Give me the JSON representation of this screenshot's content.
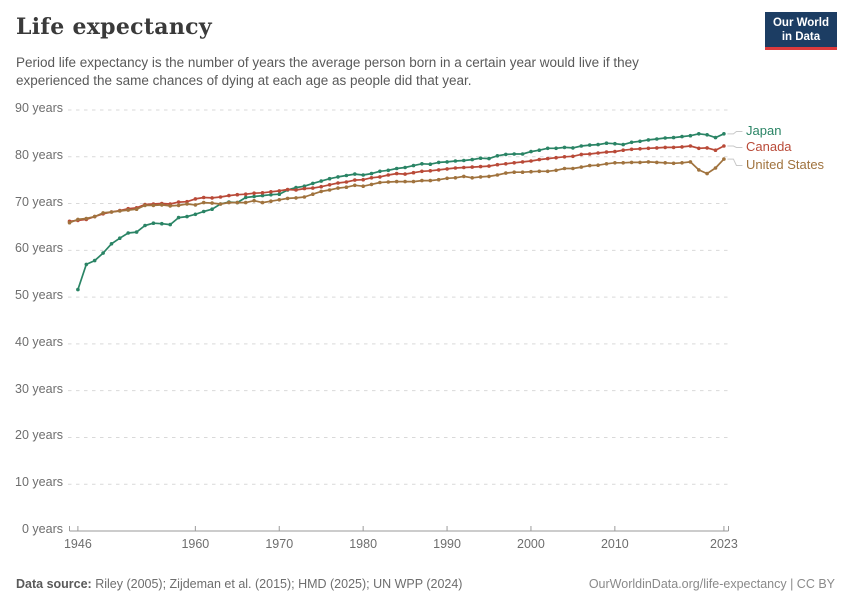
{
  "header": {
    "title": "Life expectancy",
    "subtitle_line1": "Period life expectancy is the number of years the average person born in a certain year would live if they",
    "subtitle_line2": "experienced the same chances of dying at each age as people did that year."
  },
  "logo": {
    "line1": "Our World",
    "line2": "in Data",
    "bg_color": "#1c3d63",
    "stripe_color": "#dc3a3c"
  },
  "footer": {
    "source_label": "Data source:",
    "source_text": " Riley (2005); Zijdeman et al. (2015); HMD (2025); UN WPP (2024)",
    "link_text": "OurWorldinData.org/life-expectancy | CC BY"
  },
  "chart_data": {
    "type": "line",
    "title": "Life expectancy",
    "xlabel": "",
    "ylabel": "years",
    "ylim": [
      0,
      90
    ],
    "x_range": [
      1945,
      2023
    ],
    "grid": "dashed horizontal",
    "legend_position": "right of line ends",
    "yticks": [
      0,
      10,
      20,
      30,
      40,
      50,
      60,
      70,
      80,
      90
    ],
    "ytick_suffix": " years",
    "xticks": [
      1946,
      1960,
      1970,
      1980,
      1990,
      2000,
      2010,
      2023
    ],
    "axis_color": "#9a9a9a",
    "grid_color": "#d9d9d9",
    "connector_color": "#c9c9c9",
    "series": [
      {
        "name": "Japan",
        "color": "#2A8465",
        "start_year": 1946,
        "values": [
          51.6,
          57.0,
          57.8,
          59.4,
          61.4,
          62.6,
          63.7,
          63.9,
          65.3,
          65.8,
          65.7,
          65.5,
          67.0,
          67.2,
          67.7,
          68.3,
          68.8,
          69.9,
          70.3,
          70.2,
          71.3,
          71.5,
          71.7,
          71.9,
          72.0,
          72.9,
          73.4,
          73.7,
          74.3,
          74.8,
          75.3,
          75.7,
          76.0,
          76.3,
          76.1,
          76.4,
          76.9,
          77.1,
          77.5,
          77.7,
          78.1,
          78.5,
          78.4,
          78.8,
          78.9,
          79.1,
          79.2,
          79.4,
          79.7,
          79.6,
          80.2,
          80.5,
          80.6,
          80.6,
          81.1,
          81.4,
          81.8,
          81.8,
          82.0,
          81.9,
          82.3,
          82.5,
          82.6,
          82.9,
          82.8,
          82.6,
          83.1,
          83.3,
          83.6,
          83.8,
          84.0,
          84.1,
          84.3,
          84.5,
          84.9,
          84.7,
          84.1,
          84.9
        ]
      },
      {
        "name": "Canada",
        "color": "#B94A38",
        "start_year": 1945,
        "values": [
          66.2,
          66.4,
          66.6,
          67.2,
          67.8,
          68.2,
          68.5,
          68.9,
          69.1,
          69.8,
          69.9,
          70.0,
          69.9,
          70.3,
          70.4,
          71.0,
          71.3,
          71.2,
          71.4,
          71.7,
          71.9,
          72.0,
          72.2,
          72.3,
          72.5,
          72.7,
          73.0,
          72.9,
          73.2,
          73.3,
          73.6,
          74.0,
          74.4,
          74.6,
          75.0,
          75.1,
          75.5,
          75.7,
          76.1,
          76.4,
          76.3,
          76.6,
          76.9,
          77.0,
          77.2,
          77.4,
          77.6,
          77.7,
          77.8,
          77.9,
          78.0,
          78.3,
          78.5,
          78.7,
          78.9,
          79.1,
          79.4,
          79.6,
          79.8,
          80.0,
          80.1,
          80.5,
          80.6,
          80.8,
          81.0,
          81.1,
          81.4,
          81.6,
          81.7,
          81.8,
          81.9,
          82.0,
          82.0,
          82.1,
          82.3,
          81.8,
          81.9,
          81.4,
          82.3
        ]
      },
      {
        "name": "United States",
        "color": "#A0733E",
        "start_year": 1945,
        "values": [
          65.9,
          66.6,
          66.8,
          67.2,
          68.0,
          68.2,
          68.4,
          68.6,
          68.8,
          69.6,
          69.6,
          69.7,
          69.5,
          69.6,
          69.9,
          69.7,
          70.2,
          70.1,
          69.9,
          70.2,
          70.2,
          70.2,
          70.6,
          70.2,
          70.5,
          70.8,
          71.1,
          71.2,
          71.4,
          72.0,
          72.6,
          72.9,
          73.3,
          73.5,
          73.9,
          73.7,
          74.1,
          74.5,
          74.6,
          74.7,
          74.7,
          74.7,
          74.9,
          74.9,
          75.1,
          75.4,
          75.5,
          75.8,
          75.5,
          75.7,
          75.8,
          76.1,
          76.5,
          76.7,
          76.7,
          76.8,
          76.9,
          76.9,
          77.1,
          77.5,
          77.5,
          77.8,
          78.1,
          78.2,
          78.5,
          78.7,
          78.7,
          78.8,
          78.8,
          78.9,
          78.8,
          78.7,
          78.6,
          78.7,
          78.9,
          77.2,
          76.4,
          77.6,
          79.5
        ]
      }
    ]
  }
}
